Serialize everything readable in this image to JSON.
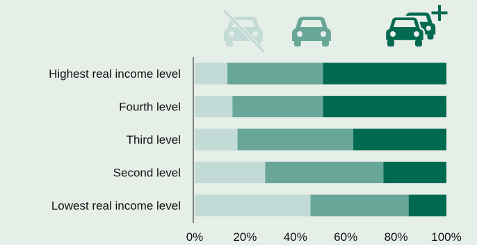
{
  "chart_data": {
    "type": "bar",
    "orientation": "horizontal",
    "stacked": true,
    "categories": [
      "Highest real income level",
      "Fourth level",
      "Third level",
      "Second level",
      "Lowest real income level"
    ],
    "series": [
      {
        "legend_icon": "no-car-icon",
        "color": "#c3dbd6",
        "values": [
          13,
          15,
          17,
          28,
          46
        ]
      },
      {
        "legend_icon": "one-car-icon",
        "color": "#68a698",
        "values": [
          38,
          36,
          46,
          47,
          39
        ]
      },
      {
        "legend_icon": "two-plus-cars-icon",
        "color": "#006a51",
        "values": [
          49,
          49,
          37,
          25,
          15
        ]
      }
    ],
    "xlim": [
      0,
      100
    ],
    "xticks": [
      "0%",
      "20%",
      "40%",
      "60%",
      "80%",
      "100%"
    ],
    "grid": false,
    "legend": "top-icons"
  }
}
